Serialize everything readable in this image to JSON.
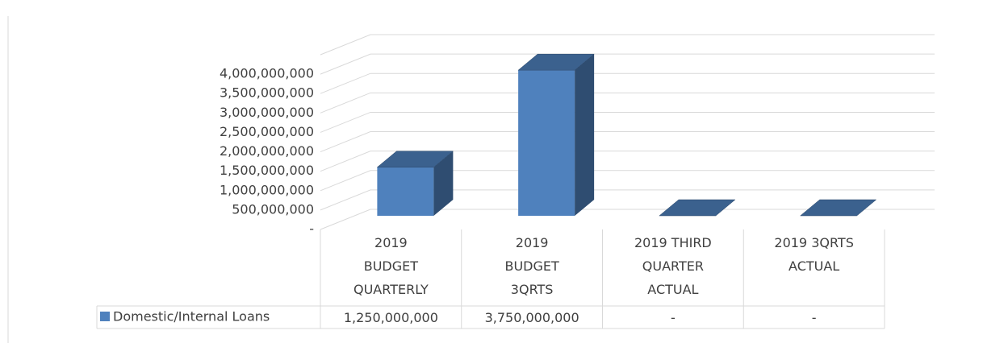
{
  "chart_data": {
    "type": "bar3d",
    "categories": [
      "2019\nBUDGET\nQUARTERLY",
      "2019\nBUDGET\n3QRTS",
      "2019 THIRD\nQUARTER\nACTUAL",
      "2019 3QRTS\nACTUAL"
    ],
    "series": [
      {
        "name": "Domestic/Internal Loans",
        "color": "#4f81bd",
        "values": [
          1250000000,
          3750000000,
          0,
          0
        ],
        "value_labels": [
          "1,250,000,000",
          "3,750,000,000",
          "-",
          "-"
        ]
      }
    ],
    "ylim": [
      0,
      4500000000
    ],
    "yticks": [
      {
        "value": 0,
        "label": "-"
      },
      {
        "value": 500000000,
        "label": "500,000,000"
      },
      {
        "value": 1000000000,
        "label": "1,000,000,000"
      },
      {
        "value": 1500000000,
        "label": "1,500,000,000"
      },
      {
        "value": 2000000000,
        "label": "2,000,000,000"
      },
      {
        "value": 2500000000,
        "label": "2,500,000,000"
      },
      {
        "value": 3000000000,
        "label": "3,000,000,000"
      },
      {
        "value": 3500000000,
        "label": "3,500,000,000"
      },
      {
        "value": 4000000000,
        "label": "4,000,000,000"
      }
    ],
    "grid": true
  }
}
